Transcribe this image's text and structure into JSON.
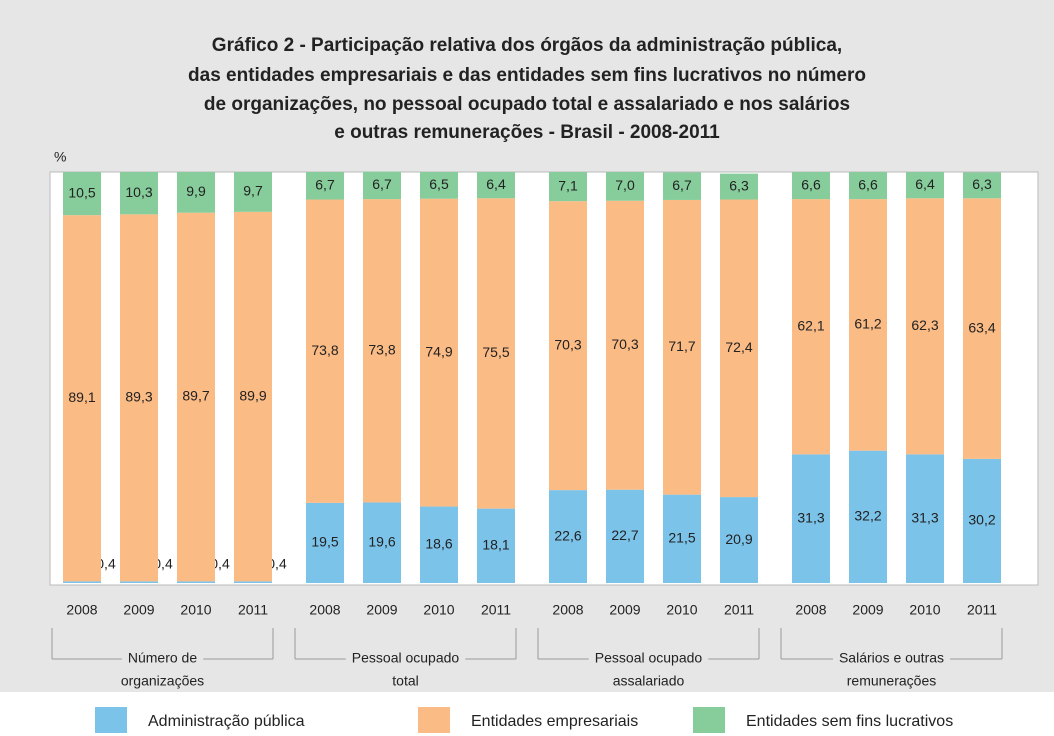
{
  "chart_data": {
    "type": "stacked_bar",
    "title_lines": [
      "Gráfico 2 - Participação relativa dos órgãos da administração pública,",
      "das entidades empresariais e das entidades sem fins lucrativos no número",
      "de organizações, no pessoal ocupado total e assalariado e nos salários",
      "e outras remunerações - Brasil - 2008-2011"
    ],
    "y_label": "%",
    "categories": [
      "2008",
      "2009",
      "2010",
      "2011",
      "2008",
      "2009",
      "2010",
      "2011",
      "2008",
      "2009",
      "2010",
      "2011",
      "2008",
      "2009",
      "2010",
      "2011"
    ],
    "groups": [
      {
        "label_lines": [
          "Número de",
          "organizações"
        ]
      },
      {
        "label_lines": [
          "Pessoal ocupado",
          "total"
        ]
      },
      {
        "label_lines": [
          "Pessoal ocupado",
          "assalariado"
        ]
      },
      {
        "label_lines": [
          "Salários e outras",
          "remunerações"
        ]
      }
    ],
    "ylim": [
      0,
      100
    ],
    "series": [
      {
        "name": "Administração pública",
        "color": "#7cc3ea",
        "values": [
          0.4,
          0.4,
          0.4,
          0.4,
          19.5,
          19.6,
          18.6,
          18.1,
          22.6,
          22.7,
          21.5,
          20.9,
          31.3,
          32.2,
          31.3,
          30.2
        ],
        "value_labels": [
          "0,4",
          "0,4",
          "0,4",
          "0,4",
          "19,5",
          "19,6",
          "18,6",
          "18,1",
          "22,6",
          "22,7",
          "21,5",
          "20,9",
          "31,3",
          "32,2",
          "31,3",
          "30,2"
        ]
      },
      {
        "name": "Entidades empresariais",
        "color": "#fbbb85",
        "values": [
          89.1,
          89.3,
          89.7,
          89.9,
          73.8,
          73.8,
          74.9,
          75.5,
          70.3,
          70.3,
          71.7,
          72.4,
          62.1,
          61.2,
          62.3,
          63.4
        ],
        "value_labels": [
          "89,1",
          "89,3",
          "89,7",
          "89,9",
          "73,8",
          "73,8",
          "74,9",
          "75,5",
          "70,3",
          "70,3",
          "71,7",
          "72,4",
          "62,1",
          "61,2",
          "62,3",
          "63,4"
        ]
      },
      {
        "name": "Entidades sem fins lucrativos",
        "color": "#86cd9b",
        "values": [
          10.5,
          10.3,
          9.9,
          9.7,
          6.7,
          6.7,
          6.5,
          6.4,
          7.1,
          7.0,
          6.7,
          6.3,
          6.6,
          6.6,
          6.4,
          6.3
        ],
        "value_labels": [
          "10,5",
          "10,3",
          "9,9",
          "9,7",
          "6,7",
          "6,7",
          "6,5",
          "6,4",
          "7,1",
          "7,0",
          "6,7",
          "6,3",
          "6,6",
          "6,6",
          "6,4",
          "6,3"
        ]
      }
    ]
  }
}
